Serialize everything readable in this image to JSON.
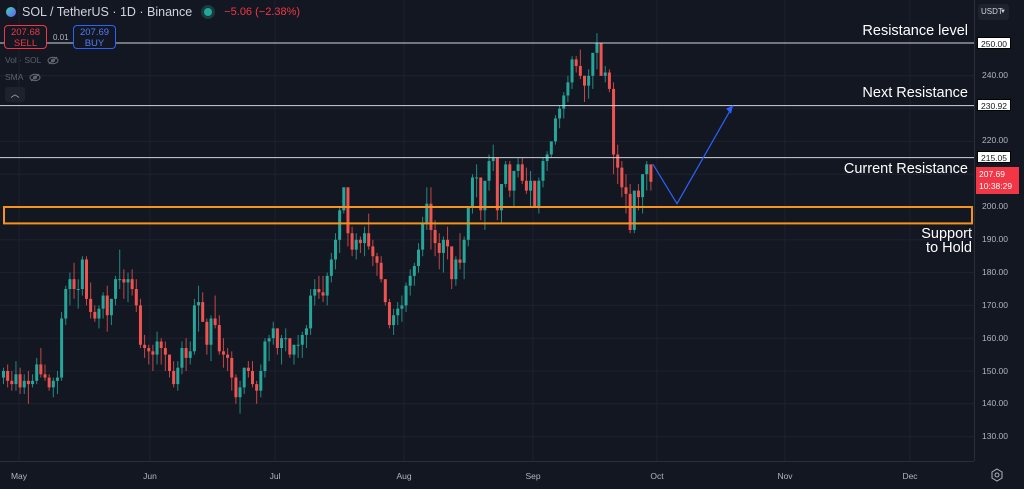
{
  "header": {
    "title": "SOL / TetherUS · 1D · Binance",
    "change": "−5.06 (−2.38%)",
    "status": "market-open"
  },
  "trade": {
    "sell_price": "207.68",
    "sell_label": "SELL",
    "spread": "0.01",
    "buy_price": "207.69",
    "buy_label": "BUY"
  },
  "indicators": [
    {
      "label": "Vol · SOL",
      "icon": "eye-off-icon"
    },
    {
      "label": "SMA",
      "icon": "eye-off-icon"
    }
  ],
  "collapse_icon": "chevron-up-icon",
  "currency": {
    "label": "USDT",
    "icon": "chevron-down-icon"
  },
  "annotations": {
    "resistance_level": "Resistance level",
    "next_resistance": "Next Resistance",
    "current_resistance": "Current Resistance",
    "support_line1": "Support",
    "support_line2": "to Hold"
  },
  "price_axis": {
    "ticks": [
      "250.00",
      "240.00",
      "220.00",
      "210.00",
      "200.00",
      "190.00",
      "180.00",
      "170.00",
      "160.00",
      "150.00",
      "140.00",
      "130.00"
    ],
    "line_tags": [
      "250.00",
      "230.92",
      "215.05"
    ],
    "last_price": "207.69",
    "countdown": "10:38:29"
  },
  "time_axis": {
    "months": [
      "May",
      "Jun",
      "Jul",
      "Aug",
      "Sep",
      "Oct",
      "Nov",
      "Dec"
    ]
  },
  "colors": {
    "background": "#131722",
    "up": "#26a69a",
    "down": "#ef5350",
    "support_box": "#f7931a",
    "projection": "#2962ff",
    "horizontal_lines": "#d1d4dc"
  },
  "chart_data": {
    "type": "candlestick",
    "title": "SOL / TetherUS · 1D · Binance",
    "xlabel": "",
    "ylabel": "USDT",
    "ylim": [
      125,
      255
    ],
    "x_ticks": [
      "May",
      "Jun",
      "Jul",
      "Aug",
      "Sep",
      "Oct",
      "Nov",
      "Dec"
    ],
    "grid": true,
    "horizontal_lines": [
      {
        "label": "Resistance level",
        "price": 250.0
      },
      {
        "label": "Next Resistance",
        "price": 230.92
      },
      {
        "label": "Current Resistance",
        "price": 215.05
      }
    ],
    "support_zone": {
      "label": "Support to Hold",
      "low": 195.0,
      "high": 200.0
    },
    "projection_path": [
      {
        "date": "Sep 29",
        "price": 213
      },
      {
        "date": "Oct 5",
        "price": 201
      },
      {
        "date": "Oct 19",
        "price": 231
      }
    ],
    "last_price": 207.69,
    "change": -5.06,
    "change_pct": -2.38,
    "candles_ohlc": [
      [
        148,
        151,
        146,
        150
      ],
      [
        150,
        152,
        145,
        147
      ],
      [
        147,
        150,
        144,
        146
      ],
      [
        146,
        153,
        144,
        149
      ],
      [
        149,
        151,
        143,
        145
      ],
      [
        145,
        149,
        143,
        147
      ],
      [
        147,
        150,
        140,
        146
      ],
      [
        146,
        149,
        145,
        147
      ],
      [
        147,
        154,
        146,
        152
      ],
      [
        152,
        157,
        148,
        149
      ],
      [
        149,
        152,
        147,
        148
      ],
      [
        148,
        149,
        144,
        145
      ],
      [
        145,
        148,
        142,
        147
      ],
      [
        147,
        150,
        143,
        148
      ],
      [
        148,
        168,
        147,
        166
      ],
      [
        166,
        176,
        164,
        175
      ],
      [
        175,
        180,
        170,
        178
      ],
      [
        178,
        183,
        172,
        175
      ],
      [
        175,
        178,
        169,
        175
      ],
      [
        175,
        185,
        173,
        184
      ],
      [
        184,
        185,
        170,
        172
      ],
      [
        172,
        177,
        166,
        168
      ],
      [
        168,
        170,
        165,
        166
      ],
      [
        166,
        170,
        163,
        169
      ],
      [
        169,
        174,
        166,
        173
      ],
      [
        173,
        176,
        162,
        167
      ],
      [
        167,
        172,
        164,
        172
      ],
      [
        172,
        179,
        170,
        178
      ],
      [
        178,
        187,
        175,
        178
      ],
      [
        178,
        181,
        172,
        177
      ],
      [
        177,
        180,
        171,
        178
      ],
      [
        178,
        181,
        173,
        175
      ],
      [
        175,
        178,
        168,
        170
      ],
      [
        170,
        172,
        157,
        158
      ],
      [
        158,
        161,
        154,
        157
      ],
      [
        157,
        158,
        152,
        156
      ],
      [
        156,
        158,
        150,
        155
      ],
      [
        155,
        162,
        152,
        159
      ],
      [
        159,
        160,
        152,
        157
      ],
      [
        157,
        159,
        150,
        155
      ],
      [
        155,
        154,
        148,
        150
      ],
      [
        150,
        153,
        145,
        146
      ],
      [
        146,
        153,
        144,
        151
      ],
      [
        151,
        159,
        149,
        157
      ],
      [
        157,
        160,
        150,
        154
      ],
      [
        154,
        159,
        152,
        156
      ],
      [
        156,
        172,
        155,
        170
      ],
      [
        170,
        176,
        162,
        171
      ],
      [
        171,
        174,
        165,
        165
      ],
      [
        165,
        166,
        155,
        158
      ],
      [
        158,
        167,
        153,
        166
      ],
      [
        166,
        173,
        163,
        164
      ],
      [
        164,
        167,
        155,
        156
      ],
      [
        156,
        160,
        151,
        155
      ],
      [
        155,
        157,
        150,
        154
      ],
      [
        154,
        156,
        144,
        148
      ],
      [
        148,
        149,
        140,
        142
      ],
      [
        142,
        147,
        137,
        145
      ],
      [
        145,
        151,
        143,
        151
      ],
      [
        151,
        153,
        148,
        150
      ],
      [
        150,
        153,
        145,
        146
      ],
      [
        146,
        147,
        140,
        144
      ],
      [
        144,
        152,
        142,
        150
      ],
      [
        150,
        160,
        148,
        159
      ],
      [
        159,
        161,
        153,
        160
      ],
      [
        160,
        165,
        158,
        163
      ],
      [
        163,
        163,
        155,
        157
      ],
      [
        157,
        161,
        152,
        160
      ],
      [
        160,
        163,
        156,
        160
      ],
      [
        160,
        158,
        154,
        155
      ],
      [
        155,
        158,
        152,
        158
      ],
      [
        158,
        161,
        154,
        158
      ],
      [
        158,
        162,
        154,
        161
      ],
      [
        161,
        164,
        157,
        163
      ],
      [
        163,
        175,
        161,
        173
      ],
      [
        173,
        178,
        170,
        175
      ],
      [
        175,
        179,
        172,
        174
      ],
      [
        174,
        179,
        171,
        173
      ],
      [
        173,
        180,
        170,
        179
      ],
      [
        179,
        186,
        177,
        184
      ],
      [
        184,
        192,
        181,
        190
      ],
      [
        190,
        200,
        186,
        199
      ],
      [
        199,
        206,
        198,
        206
      ],
      [
        206,
        206,
        188,
        192
      ],
      [
        192,
        194,
        185,
        187
      ],
      [
        187,
        192,
        184,
        190
      ],
      [
        190,
        191,
        186,
        189
      ],
      [
        189,
        194,
        185,
        192
      ],
      [
        192,
        198,
        187,
        188
      ],
      [
        188,
        190,
        182,
        185
      ],
      [
        185,
        186,
        179,
        183
      ],
      [
        183,
        185,
        177,
        178
      ],
      [
        178,
        177,
        170,
        171
      ],
      [
        171,
        172,
        163,
        164
      ],
      [
        164,
        169,
        161,
        167
      ],
      [
        167,
        171,
        164,
        169
      ],
      [
        169,
        173,
        165,
        170
      ],
      [
        170,
        177,
        168,
        176
      ],
      [
        176,
        181,
        173,
        179
      ],
      [
        179,
        183,
        176,
        182
      ],
      [
        182,
        189,
        180,
        187
      ],
      [
        187,
        197,
        185,
        195
      ],
      [
        195,
        206,
        193,
        201
      ],
      [
        201,
        206,
        187,
        193
      ],
      [
        193,
        196,
        185,
        189
      ],
      [
        189,
        192,
        181,
        186
      ],
      [
        186,
        191,
        180,
        190
      ],
      [
        190,
        194,
        184,
        188
      ],
      [
        188,
        186,
        175,
        178
      ],
      [
        178,
        185,
        176,
        184
      ],
      [
        184,
        192,
        181,
        183
      ],
      [
        183,
        191,
        178,
        190
      ],
      [
        190,
        200,
        188,
        200
      ],
      [
        200,
        210,
        198,
        209
      ],
      [
        209,
        213,
        203,
        209
      ],
      [
        209,
        209,
        196,
        199
      ],
      [
        199,
        205,
        193,
        208
      ],
      [
        208,
        216,
        205,
        214
      ],
      [
        214,
        219,
        211,
        215
      ],
      [
        215,
        212,
        196,
        199
      ],
      [
        199,
        206,
        195,
        207
      ],
      [
        207,
        214,
        206,
        213
      ],
      [
        213,
        214,
        203,
        205
      ],
      [
        205,
        211,
        200,
        211
      ],
      [
        211,
        215,
        209,
        213
      ],
      [
        213,
        215,
        207,
        208
      ],
      [
        208,
        212,
        204,
        205
      ],
      [
        205,
        211,
        200,
        208
      ],
      [
        208,
        205,
        200,
        200
      ],
      [
        200,
        209,
        198,
        208
      ],
      [
        208,
        215,
        206,
        214
      ],
      [
        214,
        217,
        211,
        216
      ],
      [
        216,
        220,
        215,
        220
      ],
      [
        220,
        228,
        219,
        227
      ],
      [
        227,
        231,
        224,
        230
      ],
      [
        230,
        235,
        227,
        234
      ],
      [
        234,
        240,
        232,
        238
      ],
      [
        238,
        246,
        236,
        245
      ],
      [
        245,
        246,
        241,
        243
      ],
      [
        243,
        248,
        239,
        240
      ],
      [
        240,
        240,
        232,
        237
      ],
      [
        237,
        242,
        233,
        240
      ],
      [
        240,
        247,
        236,
        247
      ],
      [
        247,
        253,
        242,
        250
      ],
      [
        250,
        249,
        240,
        240
      ],
      [
        240,
        243,
        238,
        241
      ],
      [
        241,
        242,
        235,
        236
      ],
      [
        236,
        238,
        210,
        216
      ],
      [
        216,
        219,
        207,
        212
      ],
      [
        212,
        214,
        203,
        206
      ],
      [
        206,
        210,
        198,
        204
      ],
      [
        204,
        207,
        192,
        193
      ],
      [
        193,
        205,
        192,
        205
      ],
      [
        205,
        207,
        199,
        203
      ],
      [
        203,
        208,
        198,
        210
      ],
      [
        210,
        214,
        205,
        213
      ],
      [
        213,
        212,
        205,
        207.69
      ]
    ]
  }
}
